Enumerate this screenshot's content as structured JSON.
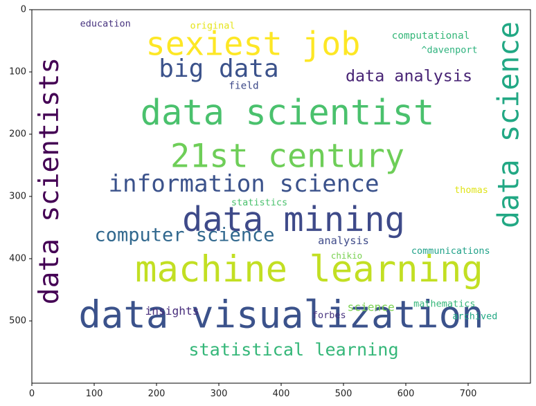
{
  "chart_data": {
    "type": "wordcloud",
    "x_ticks": [
      0,
      100,
      200,
      300,
      400,
      500,
      600,
      700
    ],
    "y_ticks": [
      0,
      100,
      200,
      300,
      400,
      500
    ],
    "xlim": [
      0,
      800
    ],
    "ylim": [
      600,
      0
    ],
    "words": [
      {
        "text": "sexiest job",
        "x": 355,
        "y": 56,
        "size": 52,
        "rotate": 0,
        "color": "#fde725"
      },
      {
        "text": "data scientist",
        "x": 410,
        "y": 165,
        "size": 56,
        "rotate": 0,
        "color": "#4ac16d"
      },
      {
        "text": "21st century",
        "x": 410,
        "y": 236,
        "size": 52,
        "rotate": 0,
        "color": "#6ece58"
      },
      {
        "text": "big data",
        "x": 300,
        "y": 95,
        "size": 40,
        "rotate": 0,
        "color": "#3b528b"
      },
      {
        "text": "data analysis",
        "x": 605,
        "y": 106,
        "size": 26,
        "rotate": 0,
        "color": "#482475"
      },
      {
        "text": "information science",
        "x": 340,
        "y": 280,
        "size": 38,
        "rotate": 0,
        "color": "#3b528b"
      },
      {
        "text": "data mining",
        "x": 420,
        "y": 338,
        "size": 54,
        "rotate": 0,
        "color": "#3e4a89"
      },
      {
        "text": "computer science",
        "x": 245,
        "y": 362,
        "size": 30,
        "rotate": 0,
        "color": "#31688e"
      },
      {
        "text": "machine learning",
        "x": 445,
        "y": 418,
        "size": 58,
        "rotate": 0,
        "color": "#c2df23"
      },
      {
        "text": "data visualization",
        "x": 400,
        "y": 490,
        "size": 60,
        "rotate": 0,
        "color": "#3b528b"
      },
      {
        "text": "statistical learning",
        "x": 420,
        "y": 546,
        "size": 28,
        "rotate": 0,
        "color": "#35b779"
      },
      {
        "text": "data scientists",
        "x": 28,
        "y": 275,
        "size": 44,
        "rotate": -90,
        "color": "#440154"
      },
      {
        "text": "data science",
        "x": 765,
        "y": 185,
        "size": 46,
        "rotate": -90,
        "color": "#22a884"
      },
      {
        "text": "education",
        "x": 118,
        "y": 23,
        "size": 15,
        "rotate": 0,
        "color": "#46327e"
      },
      {
        "text": "original",
        "x": 290,
        "y": 26,
        "size": 15,
        "rotate": 0,
        "color": "#e5e419"
      },
      {
        "text": "computational",
        "x": 640,
        "y": 42,
        "size": 16,
        "rotate": 0,
        "color": "#35b779"
      },
      {
        "text": "^davenport",
        "x": 670,
        "y": 65,
        "size": 15,
        "rotate": 0,
        "color": "#2db27d"
      },
      {
        "text": "field",
        "x": 340,
        "y": 123,
        "size": 16,
        "rotate": 0,
        "color": "#3e4a89"
      },
      {
        "text": "thomas",
        "x": 705,
        "y": 290,
        "size": 15,
        "rotate": 0,
        "color": "#dfe318"
      },
      {
        "text": "statistics",
        "x": 365,
        "y": 310,
        "size": 15,
        "rotate": 0,
        "color": "#4ac16d"
      },
      {
        "text": "analysis",
        "x": 500,
        "y": 371,
        "size": 17,
        "rotate": 0,
        "color": "#3e4a89"
      },
      {
        "text": "communications",
        "x": 672,
        "y": 388,
        "size": 15,
        "rotate": 0,
        "color": "#1fa188"
      },
      {
        "text": "chikio",
        "x": 505,
        "y": 395,
        "size": 14,
        "rotate": 0,
        "color": "#7ad151"
      },
      {
        "text": "insights",
        "x": 225,
        "y": 484,
        "size": 18,
        "rotate": 0,
        "color": "#472d7b"
      },
      {
        "text": "forbes",
        "x": 477,
        "y": 491,
        "size": 15,
        "rotate": 0,
        "color": "#46327e"
      },
      {
        "text": "science",
        "x": 544,
        "y": 478,
        "size": 18,
        "rotate": 0,
        "color": "#7ad151"
      },
      {
        "text": "mathematics",
        "x": 662,
        "y": 473,
        "size": 15,
        "rotate": 0,
        "color": "#35b779"
      },
      {
        "text": "archived",
        "x": 711,
        "y": 493,
        "size": 15,
        "rotate": 0,
        "color": "#22a884"
      }
    ]
  }
}
